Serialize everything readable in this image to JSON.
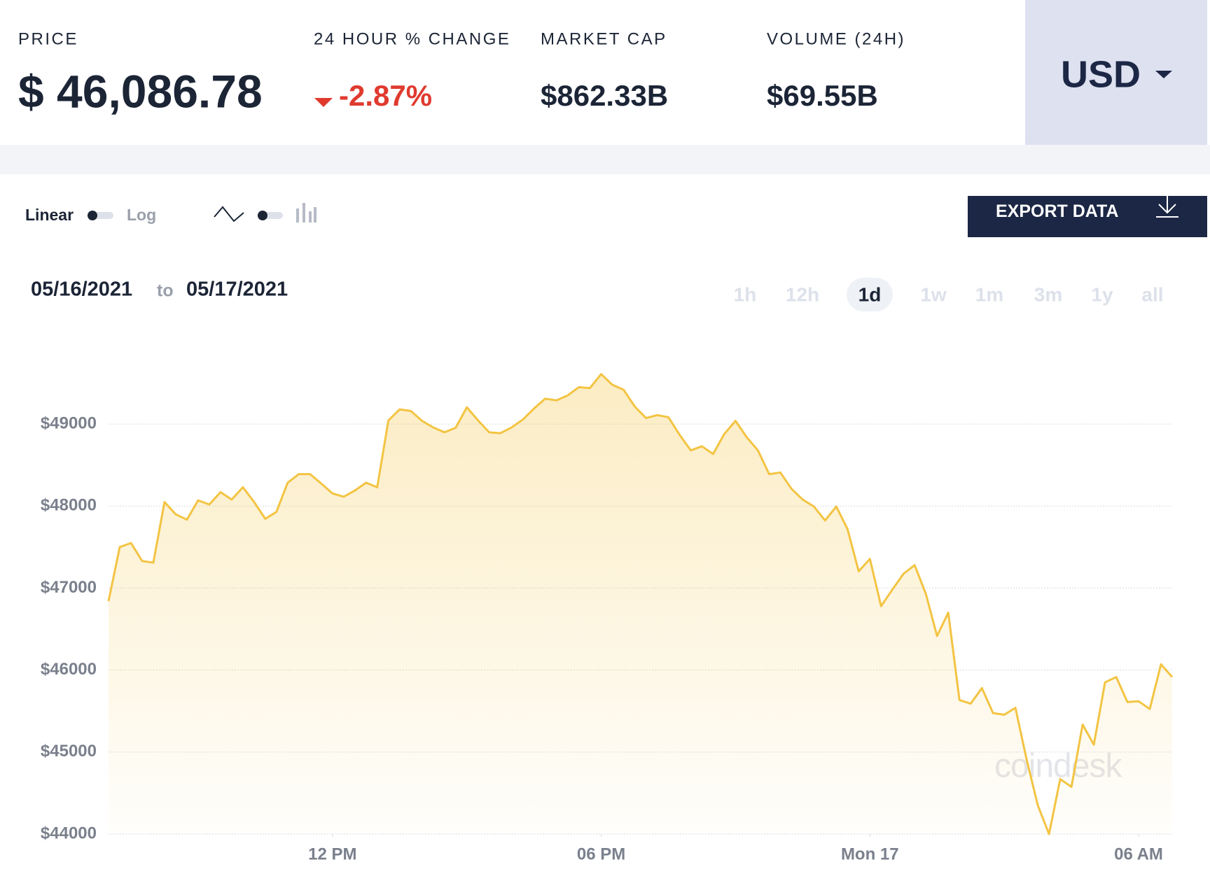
{
  "stats": [
    {
      "label": "PRICE",
      "value": "$ 46,086.78"
    },
    {
      "label": "24 HOUR % CHANGE",
      "value": "-2.87%"
    },
    {
      "label": "MARKET CAP",
      "value": "$862.33B"
    },
    {
      "label": "VOLUME (24H)",
      "value": "$69.55B"
    }
  ],
  "currency": "USD",
  "controls": {
    "linear": "Linear",
    "log": "Log",
    "export": "EXPORT DATA"
  },
  "date_range": {
    "from": "05/16/2021",
    "joiner": "to",
    "to": "05/17/2021"
  },
  "ranges": [
    "1h",
    "12h",
    "1d",
    "1w",
    "1m",
    "3m",
    "1y",
    "all"
  ],
  "active_range": "1d",
  "chart_data": {
    "type": "area",
    "color": "#f3c443",
    "watermark": "coindesk",
    "grid": true,
    "x": [
      "2021-05-16T07:00",
      "2021-05-16T07:15",
      "2021-05-16T07:30",
      "2021-05-16T07:45",
      "2021-05-16T08:00",
      "2021-05-16T08:15",
      "2021-05-16T08:30",
      "2021-05-16T08:45",
      "2021-05-16T09:00",
      "2021-05-16T09:15",
      "2021-05-16T09:30",
      "2021-05-16T09:45",
      "2021-05-16T10:00",
      "2021-05-16T10:15",
      "2021-05-16T10:30",
      "2021-05-16T10:45",
      "2021-05-16T11:00",
      "2021-05-16T11:15",
      "2021-05-16T11:30",
      "2021-05-16T11:45",
      "2021-05-16T12:00",
      "2021-05-16T12:15",
      "2021-05-16T12:30",
      "2021-05-16T12:45",
      "2021-05-16T13:00",
      "2021-05-16T13:15",
      "2021-05-16T13:30",
      "2021-05-16T13:45",
      "2021-05-16T14:00",
      "2021-05-16T14:15",
      "2021-05-16T14:30",
      "2021-05-16T14:45",
      "2021-05-16T15:00",
      "2021-05-16T15:15",
      "2021-05-16T15:30",
      "2021-05-16T15:45",
      "2021-05-16T16:00",
      "2021-05-16T16:15",
      "2021-05-16T16:30",
      "2021-05-16T16:45",
      "2021-05-16T17:00",
      "2021-05-16T17:15",
      "2021-05-16T17:30",
      "2021-05-16T17:45",
      "2021-05-16T18:00",
      "2021-05-16T18:15",
      "2021-05-16T18:30",
      "2021-05-16T18:45",
      "2021-05-16T19:00",
      "2021-05-16T19:15",
      "2021-05-16T19:30",
      "2021-05-16T19:45",
      "2021-05-16T20:00",
      "2021-05-16T20:15",
      "2021-05-16T20:30",
      "2021-05-16T20:45",
      "2021-05-16T21:00",
      "2021-05-16T21:15",
      "2021-05-16T21:30",
      "2021-05-16T21:45",
      "2021-05-16T22:00",
      "2021-05-16T22:15",
      "2021-05-16T22:30",
      "2021-05-16T22:45",
      "2021-05-16T23:00",
      "2021-05-16T23:15",
      "2021-05-16T23:30",
      "2021-05-16T23:45",
      "2021-05-17T00:00",
      "2021-05-17T00:15",
      "2021-05-17T00:30",
      "2021-05-17T00:45",
      "2021-05-17T01:00",
      "2021-05-17T01:15",
      "2021-05-17T01:30",
      "2021-05-17T01:45",
      "2021-05-17T02:00",
      "2021-05-17T02:15",
      "2021-05-17T02:30",
      "2021-05-17T02:45",
      "2021-05-17T03:00",
      "2021-05-17T03:15",
      "2021-05-17T03:30",
      "2021-05-17T03:45",
      "2021-05-17T04:00",
      "2021-05-17T04:15",
      "2021-05-17T04:30",
      "2021-05-17T04:45",
      "2021-05-17T05:00",
      "2021-05-17T05:15",
      "2021-05-17T05:30",
      "2021-05-17T05:45",
      "2021-05-17T06:00",
      "2021-05-17T06:15",
      "2021-05-17T06:30",
      "2021-05-17T06:45"
    ],
    "values": [
      46840,
      47500,
      47550,
      47330,
      47310,
      48050,
      47900,
      47835,
      48070,
      48020,
      48170,
      48080,
      48230,
      48050,
      47845,
      47930,
      48285,
      48390,
      48390,
      48275,
      48155,
      48115,
      48190,
      48285,
      48230,
      49045,
      49180,
      49160,
      49040,
      48960,
      48900,
      48955,
      49205,
      49045,
      48900,
      48890,
      48960,
      49055,
      49190,
      49310,
      49290,
      49350,
      49450,
      49440,
      49610,
      49480,
      49420,
      49215,
      49075,
      49110,
      49085,
      48870,
      48680,
      48730,
      48635,
      48880,
      49040,
      48840,
      48680,
      48390,
      48410,
      48210,
      48080,
      47995,
      47825,
      47995,
      47720,
      47205,
      47355,
      46780,
      46980,
      47175,
      47280,
      46930,
      46415,
      46700,
      45635,
      45590,
      45780,
      45475,
      45455,
      45540,
      44910,
      44350,
      44000,
      44670,
      44575,
      45335,
      45090,
      45850,
      45915,
      45610,
      45620,
      45525,
      46070,
      45915
    ],
    "ylim": [
      44000,
      50000
    ],
    "yticks": [
      {
        "value": 44000,
        "label": "$44000"
      },
      {
        "value": 45000,
        "label": "$45000"
      },
      {
        "value": 46000,
        "label": "$46000"
      },
      {
        "value": 47000,
        "label": "$47000"
      },
      {
        "value": 48000,
        "label": "$48000"
      },
      {
        "value": 49000,
        "label": "$49000"
      }
    ],
    "xticks": [
      {
        "value": "2021-05-16T12:00",
        "label": "12 PM"
      },
      {
        "value": "2021-05-16T18:00",
        "label": "06 PM"
      },
      {
        "value": "2021-05-17T00:00",
        "label": "Mon 17"
      },
      {
        "value": "2021-05-17T06:00",
        "label": "06 AM"
      }
    ]
  }
}
